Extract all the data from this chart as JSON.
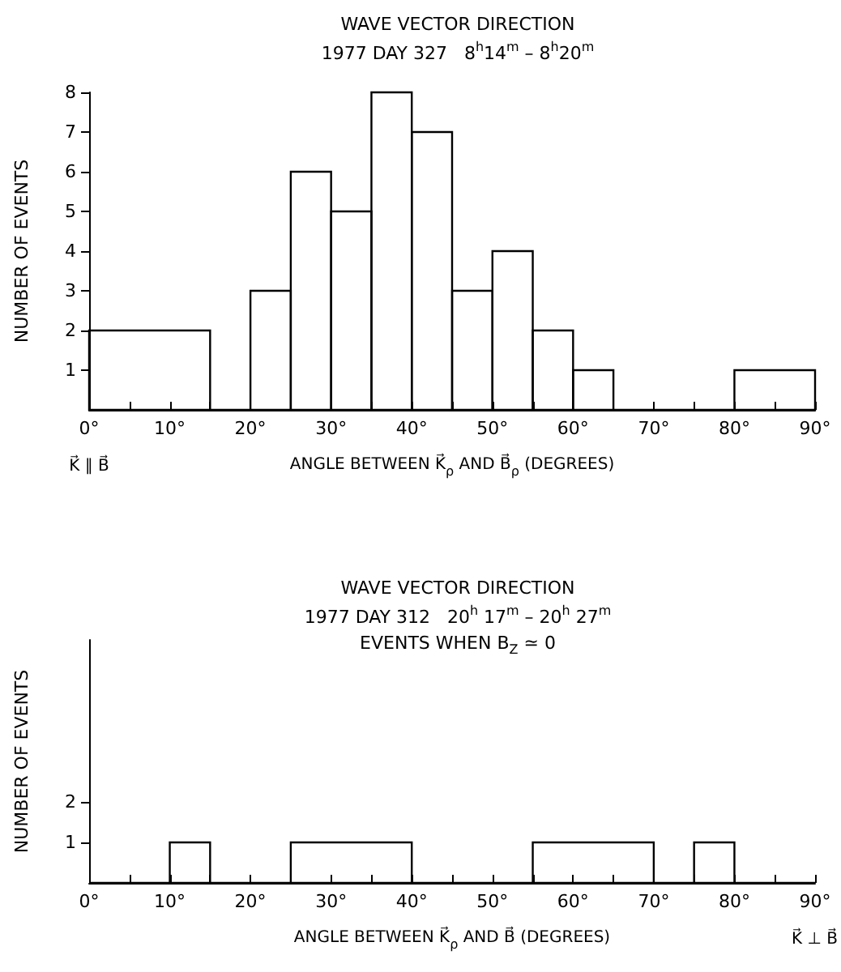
{
  "chart_data": [
    {
      "type": "histogram",
      "title": "WAVE VECTOR DIRECTION",
      "subtitle": "1977 DAY 327   8$^{h}$14$^{m}$ – 8$^{h}$20$^{m}$",
      "xlabel": "ANGLE BETWEEN K⃗$_{ρ}$ AND B⃗$_{ρ}$ (DEGREES)",
      "ylabel": "NUMBER OF EVENTS",
      "bins": [
        0,
        15,
        20,
        25,
        30,
        35,
        40,
        45,
        50,
        55,
        60,
        65,
        80,
        90
      ],
      "values": [
        2,
        0,
        3,
        6,
        5,
        8,
        7,
        3,
        4,
        2,
        1,
        0,
        1
      ],
      "color": "#000000",
      "xlim": [
        0,
        90
      ],
      "ylim": [
        0,
        8
      ],
      "xticks": [
        {
          "value": 0,
          "label": "0°"
        },
        {
          "value": 5,
          "label": null
        },
        {
          "value": 10,
          "label": "10°"
        },
        {
          "value": 15,
          "label": null
        },
        {
          "value": 20,
          "label": "20°"
        },
        {
          "value": 25,
          "label": null
        },
        {
          "value": 30,
          "label": "30°"
        },
        {
          "value": 35,
          "label": null
        },
        {
          "value": 40,
          "label": "40°"
        },
        {
          "value": 45,
          "label": null
        },
        {
          "value": 50,
          "label": "50°"
        },
        {
          "value": 55,
          "label": null
        },
        {
          "value": 60,
          "label": "60°"
        },
        {
          "value": 65,
          "label": null
        },
        {
          "value": 70,
          "label": "70°"
        },
        {
          "value": 75,
          "label": null
        },
        {
          "value": 80,
          "label": "80°"
        },
        {
          "value": 85,
          "label": null
        },
        {
          "value": 90,
          "label": "90°"
        }
      ],
      "yticks": [
        1,
        2,
        3,
        4,
        5,
        6,
        7,
        8
      ],
      "annotations": [
        {
          "text": "K⃗ ∥ B⃗",
          "x": 0,
          "y": 0
        }
      ],
      "grid": false
    },
    {
      "type": "histogram",
      "title": "WAVE VECTOR DIRECTION",
      "subtitle": "1977 DAY 312   20$^{h}$ 17$^{m}$ – 20$^{h}$ 27$^{m}$\nEVENTS WHEN B$_{Z}$ ≃ 0",
      "xlabel": "ANGLE BETWEEN K⃗$_{ρ}$ AND B⃗ (DEGREES)",
      "ylabel": "NUMBER OF EVENTS",
      "bins": [
        0,
        10,
        15,
        25,
        40,
        55,
        70,
        75,
        80,
        90
      ],
      "values": [
        0,
        1,
        0,
        1,
        0,
        1,
        0,
        1,
        0
      ],
      "color": "#000000",
      "xlim": [
        0,
        90
      ],
      "ylim": [
        0,
        6
      ],
      "xticks": [
        {
          "value": 0,
          "label": "0°"
        },
        {
          "value": 5,
          "label": null
        },
        {
          "value": 10,
          "label": "10°"
        },
        {
          "value": 15,
          "label": null
        },
        {
          "value": 20,
          "label": "20°"
        },
        {
          "value": 25,
          "label": null
        },
        {
          "value": 30,
          "label": "30°"
        },
        {
          "value": 35,
          "label": null
        },
        {
          "value": 40,
          "label": "40°"
        },
        {
          "value": 45,
          "label": null
        },
        {
          "value": 50,
          "label": "50°"
        },
        {
          "value": 55,
          "label": null
        },
        {
          "value": 60,
          "label": "60°"
        },
        {
          "value": 65,
          "label": null
        },
        {
          "value": 70,
          "label": "70°"
        },
        {
          "value": 75,
          "label": null
        },
        {
          "value": 80,
          "label": "80°"
        },
        {
          "value": 85,
          "label": null
        },
        {
          "value": 90,
          "label": "90°"
        }
      ],
      "yticks": [
        1,
        2
      ],
      "annotations": [
        {
          "text": "K⃗ ⊥ B⃗",
          "x": 90,
          "y": 0
        }
      ],
      "grid": false
    }
  ]
}
